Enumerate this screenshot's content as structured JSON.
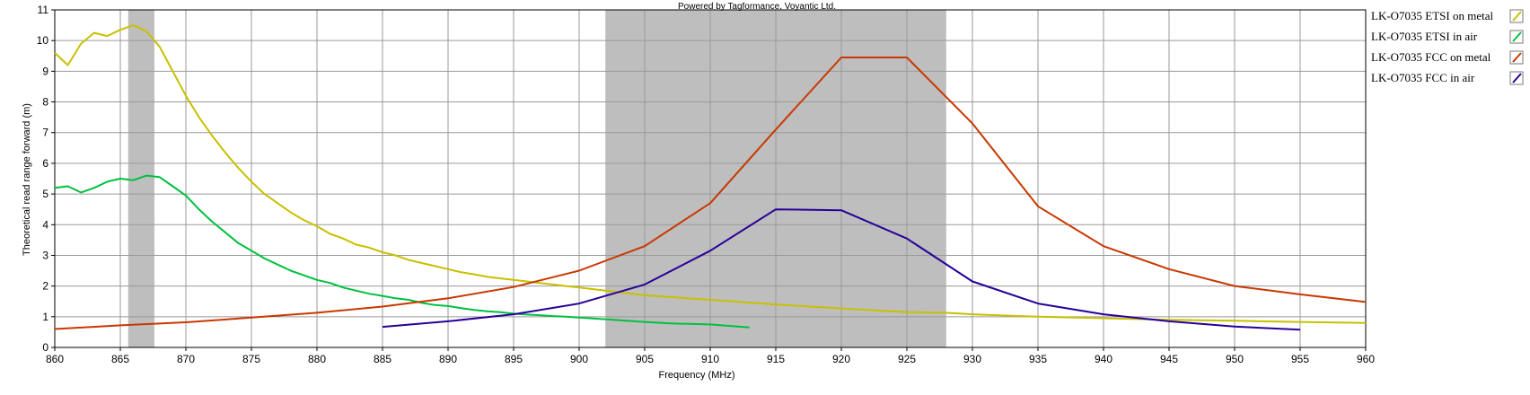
{
  "banner": "Powered by Tagformance, Voyantic Ltd.",
  "chart_data": {
    "type": "line",
    "title": "",
    "xlabel": "Frequency (MHz)",
    "ylabel": "Theoretical read range forward (m)",
    "xlim": [
      860,
      960
    ],
    "ylim": [
      0,
      11
    ],
    "x_ticks": [
      860,
      865,
      870,
      875,
      880,
      885,
      890,
      895,
      900,
      905,
      910,
      915,
      920,
      925,
      930,
      935,
      940,
      945,
      950,
      955,
      960
    ],
    "y_ticks": [
      0,
      1,
      2,
      3,
      4,
      5,
      6,
      7,
      8,
      9,
      10,
      11
    ],
    "grid": true,
    "legend_position": "right",
    "shaded_bands": [
      {
        "x_start": 865.6,
        "x_end": 867.6
      },
      {
        "x_start": 902,
        "x_end": 928
      }
    ],
    "series": [
      {
        "name": "LK-O7035 ETSI on metal",
        "color": "#c8c000",
        "points": [
          [
            860,
            9.6
          ],
          [
            861,
            9.2
          ],
          [
            862,
            9.9
          ],
          [
            863,
            10.25
          ],
          [
            864,
            10.15
          ],
          [
            865,
            10.35
          ],
          [
            866,
            10.5
          ],
          [
            867,
            10.3
          ],
          [
            868,
            9.8
          ],
          [
            869,
            9.0
          ],
          [
            870,
            8.2
          ],
          [
            871,
            7.5
          ],
          [
            872,
            6.9
          ],
          [
            873,
            6.35
          ],
          [
            874,
            5.85
          ],
          [
            875,
            5.4
          ],
          [
            876,
            5.0
          ],
          [
            877,
            4.7
          ],
          [
            878,
            4.4
          ],
          [
            879,
            4.15
          ],
          [
            880,
            3.95
          ],
          [
            881,
            3.7
          ],
          [
            882,
            3.55
          ],
          [
            883,
            3.35
          ],
          [
            884,
            3.25
          ],
          [
            885,
            3.1
          ],
          [
            886,
            3.0
          ],
          [
            887,
            2.85
          ],
          [
            888,
            2.75
          ],
          [
            889,
            2.65
          ],
          [
            890,
            2.55
          ],
          [
            891,
            2.45
          ],
          [
            892,
            2.38
          ],
          [
            893,
            2.3
          ],
          [
            894,
            2.25
          ],
          [
            895,
            2.2
          ],
          [
            896,
            2.15
          ],
          [
            897,
            2.1
          ],
          [
            898,
            2.05
          ],
          [
            899,
            2.0
          ],
          [
            900,
            1.95
          ],
          [
            902,
            1.85
          ],
          [
            905,
            1.7
          ],
          [
            910,
            1.55
          ],
          [
            915,
            1.4
          ],
          [
            920,
            1.27
          ],
          [
            923,
            1.2
          ],
          [
            925,
            1.15
          ],
          [
            928,
            1.13
          ],
          [
            930,
            1.08
          ],
          [
            935,
            1.0
          ],
          [
            940,
            0.95
          ],
          [
            945,
            0.9
          ],
          [
            950,
            0.87
          ],
          [
            955,
            0.83
          ],
          [
            960,
            0.8
          ]
        ]
      },
      {
        "name": "LK-O7035 ETSI in air",
        "color": "#00c040",
        "points": [
          [
            860,
            5.2
          ],
          [
            861,
            5.25
          ],
          [
            862,
            5.05
          ],
          [
            863,
            5.2
          ],
          [
            864,
            5.4
          ],
          [
            865,
            5.5
          ],
          [
            866,
            5.45
          ],
          [
            867,
            5.6
          ],
          [
            868,
            5.55
          ],
          [
            869,
            5.25
          ],
          [
            870,
            4.95
          ],
          [
            871,
            4.5
          ],
          [
            872,
            4.1
          ],
          [
            873,
            3.75
          ],
          [
            874,
            3.4
          ],
          [
            875,
            3.15
          ],
          [
            876,
            2.9
          ],
          [
            877,
            2.7
          ],
          [
            878,
            2.5
          ],
          [
            879,
            2.35
          ],
          [
            880,
            2.2
          ],
          [
            881,
            2.1
          ],
          [
            882,
            1.95
          ],
          [
            883,
            1.85
          ],
          [
            884,
            1.75
          ],
          [
            885,
            1.68
          ],
          [
            886,
            1.6
          ],
          [
            887,
            1.55
          ],
          [
            888,
            1.45
          ],
          [
            889,
            1.38
          ],
          [
            890,
            1.35
          ],
          [
            891,
            1.28
          ],
          [
            892,
            1.22
          ],
          [
            893,
            1.18
          ],
          [
            894,
            1.15
          ],
          [
            895,
            1.1
          ],
          [
            896,
            1.07
          ],
          [
            897,
            1.05
          ],
          [
            898,
            1.02
          ],
          [
            899,
            1.0
          ],
          [
            900,
            0.97
          ],
          [
            902,
            0.92
          ],
          [
            905,
            0.83
          ],
          [
            907,
            0.78
          ],
          [
            910,
            0.75
          ],
          [
            913,
            0.65
          ]
        ]
      },
      {
        "name": "LK-O7035 FCC on metal",
        "color": "#c83800",
        "points": [
          [
            860,
            0.6
          ],
          [
            865,
            0.72
          ],
          [
            870,
            0.82
          ],
          [
            875,
            0.97
          ],
          [
            880,
            1.13
          ],
          [
            885,
            1.33
          ],
          [
            890,
            1.6
          ],
          [
            895,
            1.97
          ],
          [
            900,
            2.5
          ],
          [
            905,
            3.3
          ],
          [
            910,
            4.7
          ],
          [
            915,
            7.1
          ],
          [
            920,
            9.45
          ],
          [
            925,
            9.45
          ],
          [
            930,
            7.3
          ],
          [
            935,
            4.6
          ],
          [
            940,
            3.3
          ],
          [
            945,
            2.55
          ],
          [
            950,
            2.0
          ],
          [
            955,
            1.73
          ],
          [
            960,
            1.48
          ]
        ]
      },
      {
        "name": "LK-O7035 FCC in air",
        "color": "#280098",
        "points": [
          [
            885,
            0.67
          ],
          [
            890,
            0.85
          ],
          [
            895,
            1.08
          ],
          [
            900,
            1.43
          ],
          [
            905,
            2.05
          ],
          [
            910,
            3.15
          ],
          [
            915,
            4.5
          ],
          [
            920,
            4.47
          ],
          [
            925,
            3.55
          ],
          [
            930,
            2.15
          ],
          [
            935,
            1.43
          ],
          [
            940,
            1.08
          ],
          [
            945,
            0.85
          ],
          [
            950,
            0.68
          ],
          [
            955,
            0.58
          ]
        ]
      }
    ]
  }
}
